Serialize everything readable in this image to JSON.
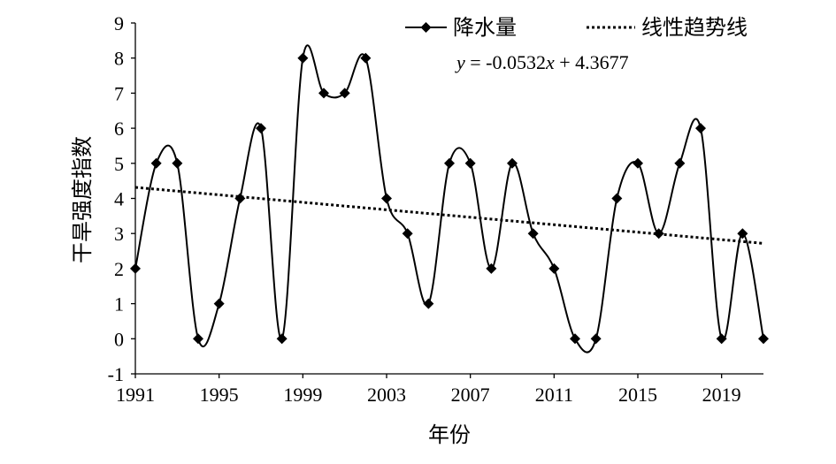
{
  "chart_data": {
    "type": "line",
    "title": "",
    "xlabel": "年份",
    "ylabel": "干旱强度指数",
    "x": [
      1991,
      1992,
      1993,
      1994,
      1995,
      1996,
      1997,
      1998,
      1999,
      2000,
      2001,
      2002,
      2003,
      2004,
      2005,
      2006,
      2007,
      2008,
      2009,
      2010,
      2011,
      2012,
      2013,
      2014,
      2015,
      2016,
      2017,
      2018,
      2019,
      2020,
      2021
    ],
    "xticks": [
      "1991",
      "1995",
      "1999",
      "2003",
      "2007",
      "2011",
      "2015",
      "2019"
    ],
    "xlim": [
      1991,
      2021
    ],
    "ylim": [
      -1,
      9
    ],
    "yticks": [
      "-1",
      "0",
      "1",
      "2",
      "3",
      "4",
      "5",
      "6",
      "7",
      "8",
      "9"
    ],
    "series": [
      {
        "name": "降水量",
        "marker": "diamond",
        "smooth": true,
        "color": "#000000",
        "values": [
          2,
          5,
          5,
          0,
          1,
          4,
          6,
          0,
          8,
          7,
          7,
          8,
          4,
          3,
          1,
          5,
          5,
          2,
          5,
          3,
          2,
          0,
          0,
          4,
          5,
          3,
          5,
          6,
          0,
          3,
          0
        ]
      }
    ],
    "trendline": {
      "name": "线性趋势线",
      "style": "dotted",
      "color": "#000000",
      "slope": -0.0532,
      "intercept": 4.3677
    },
    "equation_label": {
      "y": "y",
      "rest": " = -0.0532",
      "x": "x",
      "tail": " + 4.3677"
    },
    "legend_position": "top-right",
    "grid": false
  }
}
